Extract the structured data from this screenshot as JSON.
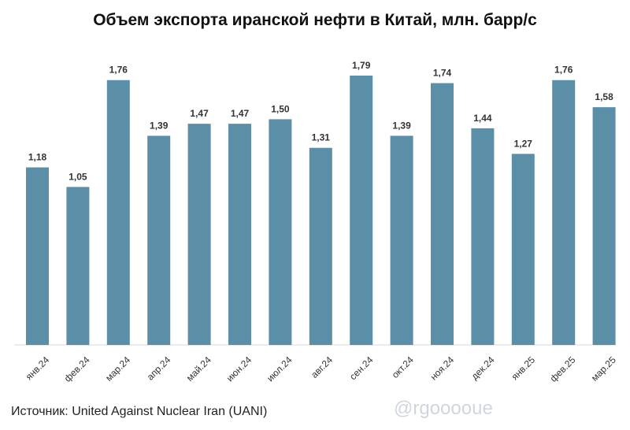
{
  "title": "Объем экспорта иранской нефти в Китай, млн. барр/с",
  "source": "Источник: United Against Nuclear Iran (UANI)",
  "watermark": "@rgooooue",
  "colors": {
    "bar": "#5b8fa8",
    "axis": "#d9d9d9",
    "label": "#333333"
  },
  "chart_data": {
    "type": "bar",
    "categories": [
      "янв.24",
      "фев.24",
      "мар.24",
      "апр.24",
      "май.24",
      "июн.24",
      "июл.24",
      "авг.24",
      "сен.24",
      "окт.24",
      "ноя.24",
      "дек.24",
      "янв.25",
      "фев.25",
      "мар.25"
    ],
    "values": [
      1.18,
      1.05,
      1.76,
      1.39,
      1.47,
      1.47,
      1.5,
      1.31,
      1.79,
      1.39,
      1.74,
      1.44,
      1.27,
      1.76,
      1.58
    ],
    "value_labels": [
      "1,18",
      "1,05",
      "1,76",
      "1,39",
      "1,47",
      "1,47",
      "1,50",
      "1,31",
      "1,79",
      "1,39",
      "1,74",
      "1,44",
      "1,27",
      "1,76",
      "1,58"
    ],
    "title": "Объем экспорта иранской нефти в Китай, млн. барр/с",
    "xlabel": "",
    "ylabel": "",
    "ylim": [
      0,
      1.79
    ],
    "grid": false,
    "legend": "none"
  }
}
